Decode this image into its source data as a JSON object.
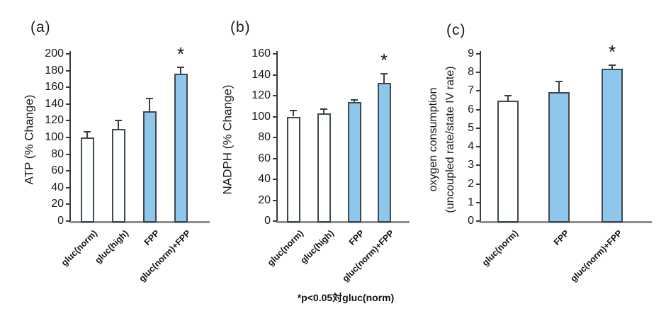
{
  "figure": {
    "caption": "*p<0.05対gluc(norm)",
    "sig_marker": "*",
    "colors": {
      "bar_fill_white": "#FFFFFF",
      "bar_fill_blue": "#8FC6EC",
      "bar_border": "#3E4A52",
      "axis_line": "#3A3A3A",
      "baseline": "#8F8F8F",
      "error_bar": "#3D3D3D",
      "text": "#1A1A1A"
    }
  },
  "chart_data": [
    {
      "type": "bar",
      "panel_label": "(a)",
      "title": "",
      "ylabel_lines": [
        "ATP (% Change)"
      ],
      "xlabel": "",
      "categories": [
        "gluc(norm)",
        "gluc(high)",
        "FPP",
        "gluc(norm)+FPP"
      ],
      "values": [
        100,
        110,
        131,
        176
      ],
      "errors_plus": [
        7,
        10,
        16,
        8
      ],
      "bar_styles": [
        "white",
        "white",
        "blue",
        "blue"
      ],
      "significant": [
        false,
        false,
        false,
        true
      ],
      "ylim": [
        0,
        200
      ],
      "ytick_step": 20,
      "grid": false,
      "legend_position": "none"
    },
    {
      "type": "bar",
      "panel_label": "(b)",
      "title": "",
      "ylabel_lines": [
        "NADPH (% Change)"
      ],
      "xlabel": "",
      "categories": [
        "gluc(norm)",
        "gluc(high)",
        "FPP",
        "gluc(norm)+FPP"
      ],
      "values": [
        100,
        103,
        114,
        132
      ],
      "errors_plus": [
        6,
        4,
        2,
        9
      ],
      "bar_styles": [
        "white",
        "white",
        "blue",
        "blue"
      ],
      "significant": [
        false,
        false,
        false,
        true
      ],
      "ylim": [
        0,
        160
      ],
      "ytick_step": 20,
      "grid": false,
      "legend_position": "none"
    },
    {
      "type": "bar",
      "panel_label": "(c)",
      "title": "",
      "ylabel_lines": [
        "oxygen consumption",
        "(uncoupled rate/state IV rate)"
      ],
      "xlabel": "",
      "categories": [
        "gluc(norm)",
        "FPP",
        "gluc(norm)+FPP"
      ],
      "values": [
        6.5,
        6.95,
        8.2
      ],
      "errors_plus": [
        0.25,
        0.55,
        0.2
      ],
      "bar_styles": [
        "white",
        "blue",
        "blue"
      ],
      "significant": [
        false,
        false,
        true
      ],
      "ylim": [
        0,
        9
      ],
      "ytick_step": 1,
      "grid": false,
      "legend_position": "none"
    }
  ]
}
